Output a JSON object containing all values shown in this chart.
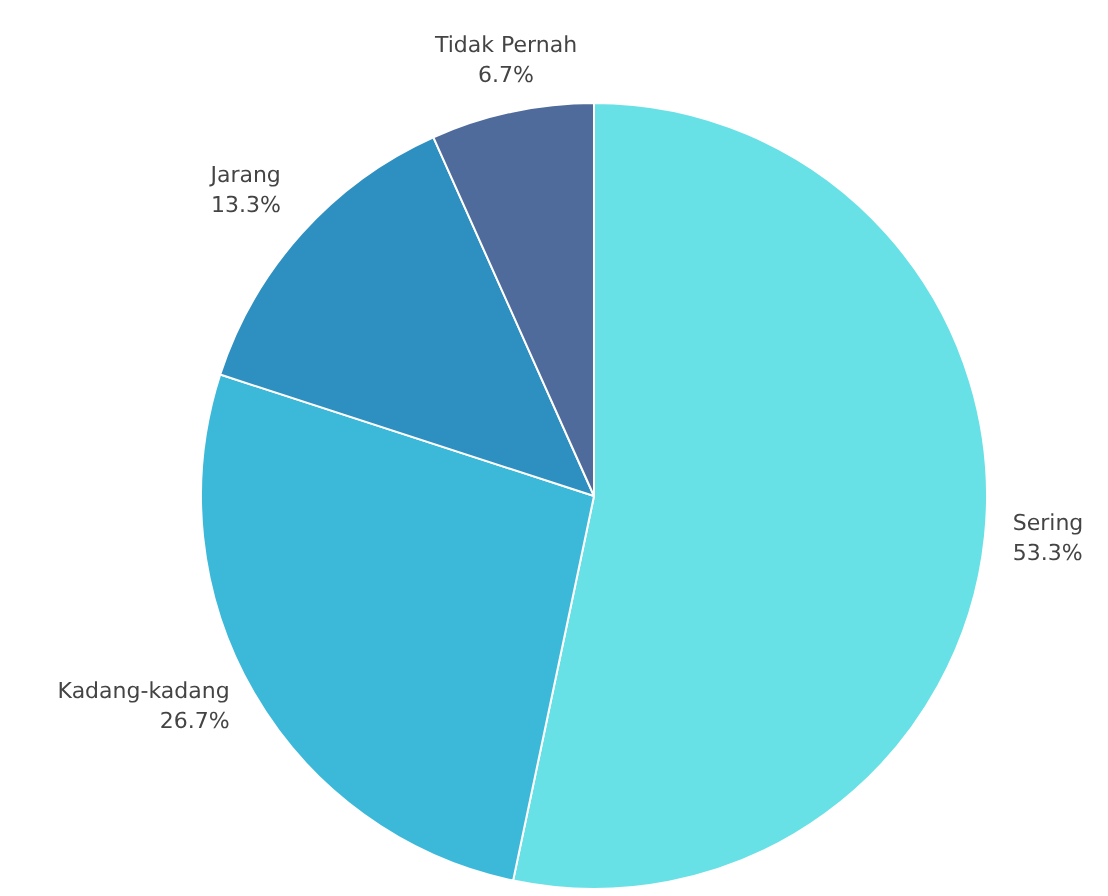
{
  "chart_data": {
    "type": "pie",
    "categories": [
      "Sering",
      "Kadang-kadang",
      "Jarang",
      "Tidak Pernah"
    ],
    "values": [
      53.3,
      26.7,
      13.3,
      6.7
    ],
    "value_labels": [
      "53.3%",
      "26.7%",
      "13.3%",
      "6.7%"
    ],
    "colors": [
      "#67e0e6",
      "#3cb9d9",
      "#2e8fc1",
      "#4e6b9b"
    ],
    "legend": false
  }
}
